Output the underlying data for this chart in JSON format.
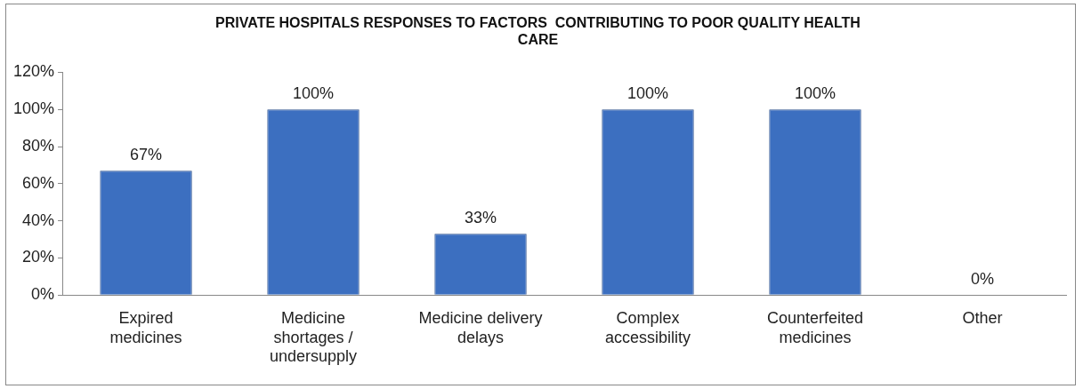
{
  "chart_data": {
    "type": "bar",
    "title": "PRIVATE HOSPITALS RESPONSES TO FACTORS  CONTRIBUTING TO POOR QUALITY HEALTH CARE",
    "categories": [
      "Expired medicines",
      "Medicine shortages / undersupply",
      "Medicine delivery delays",
      "Complex accessibility",
      "Counterfeited medicines",
      "Other"
    ],
    "values": [
      67,
      100,
      33,
      100,
      100,
      0
    ],
    "value_labels": [
      "67%",
      "100%",
      "33%",
      "100%",
      "100%",
      "0%"
    ],
    "color": "#3c6fc0",
    "ylim": [
      0,
      120
    ],
    "yticks": [
      {
        "value": 0,
        "label": "0%"
      },
      {
        "value": 20,
        "label": "20%"
      },
      {
        "value": 40,
        "label": "40%"
      },
      {
        "value": 60,
        "label": "60%"
      },
      {
        "value": 80,
        "label": "80%"
      },
      {
        "value": 100,
        "label": "100%"
      },
      {
        "value": 120,
        "label": "120%"
      }
    ],
    "grid": false,
    "legend": false
  }
}
